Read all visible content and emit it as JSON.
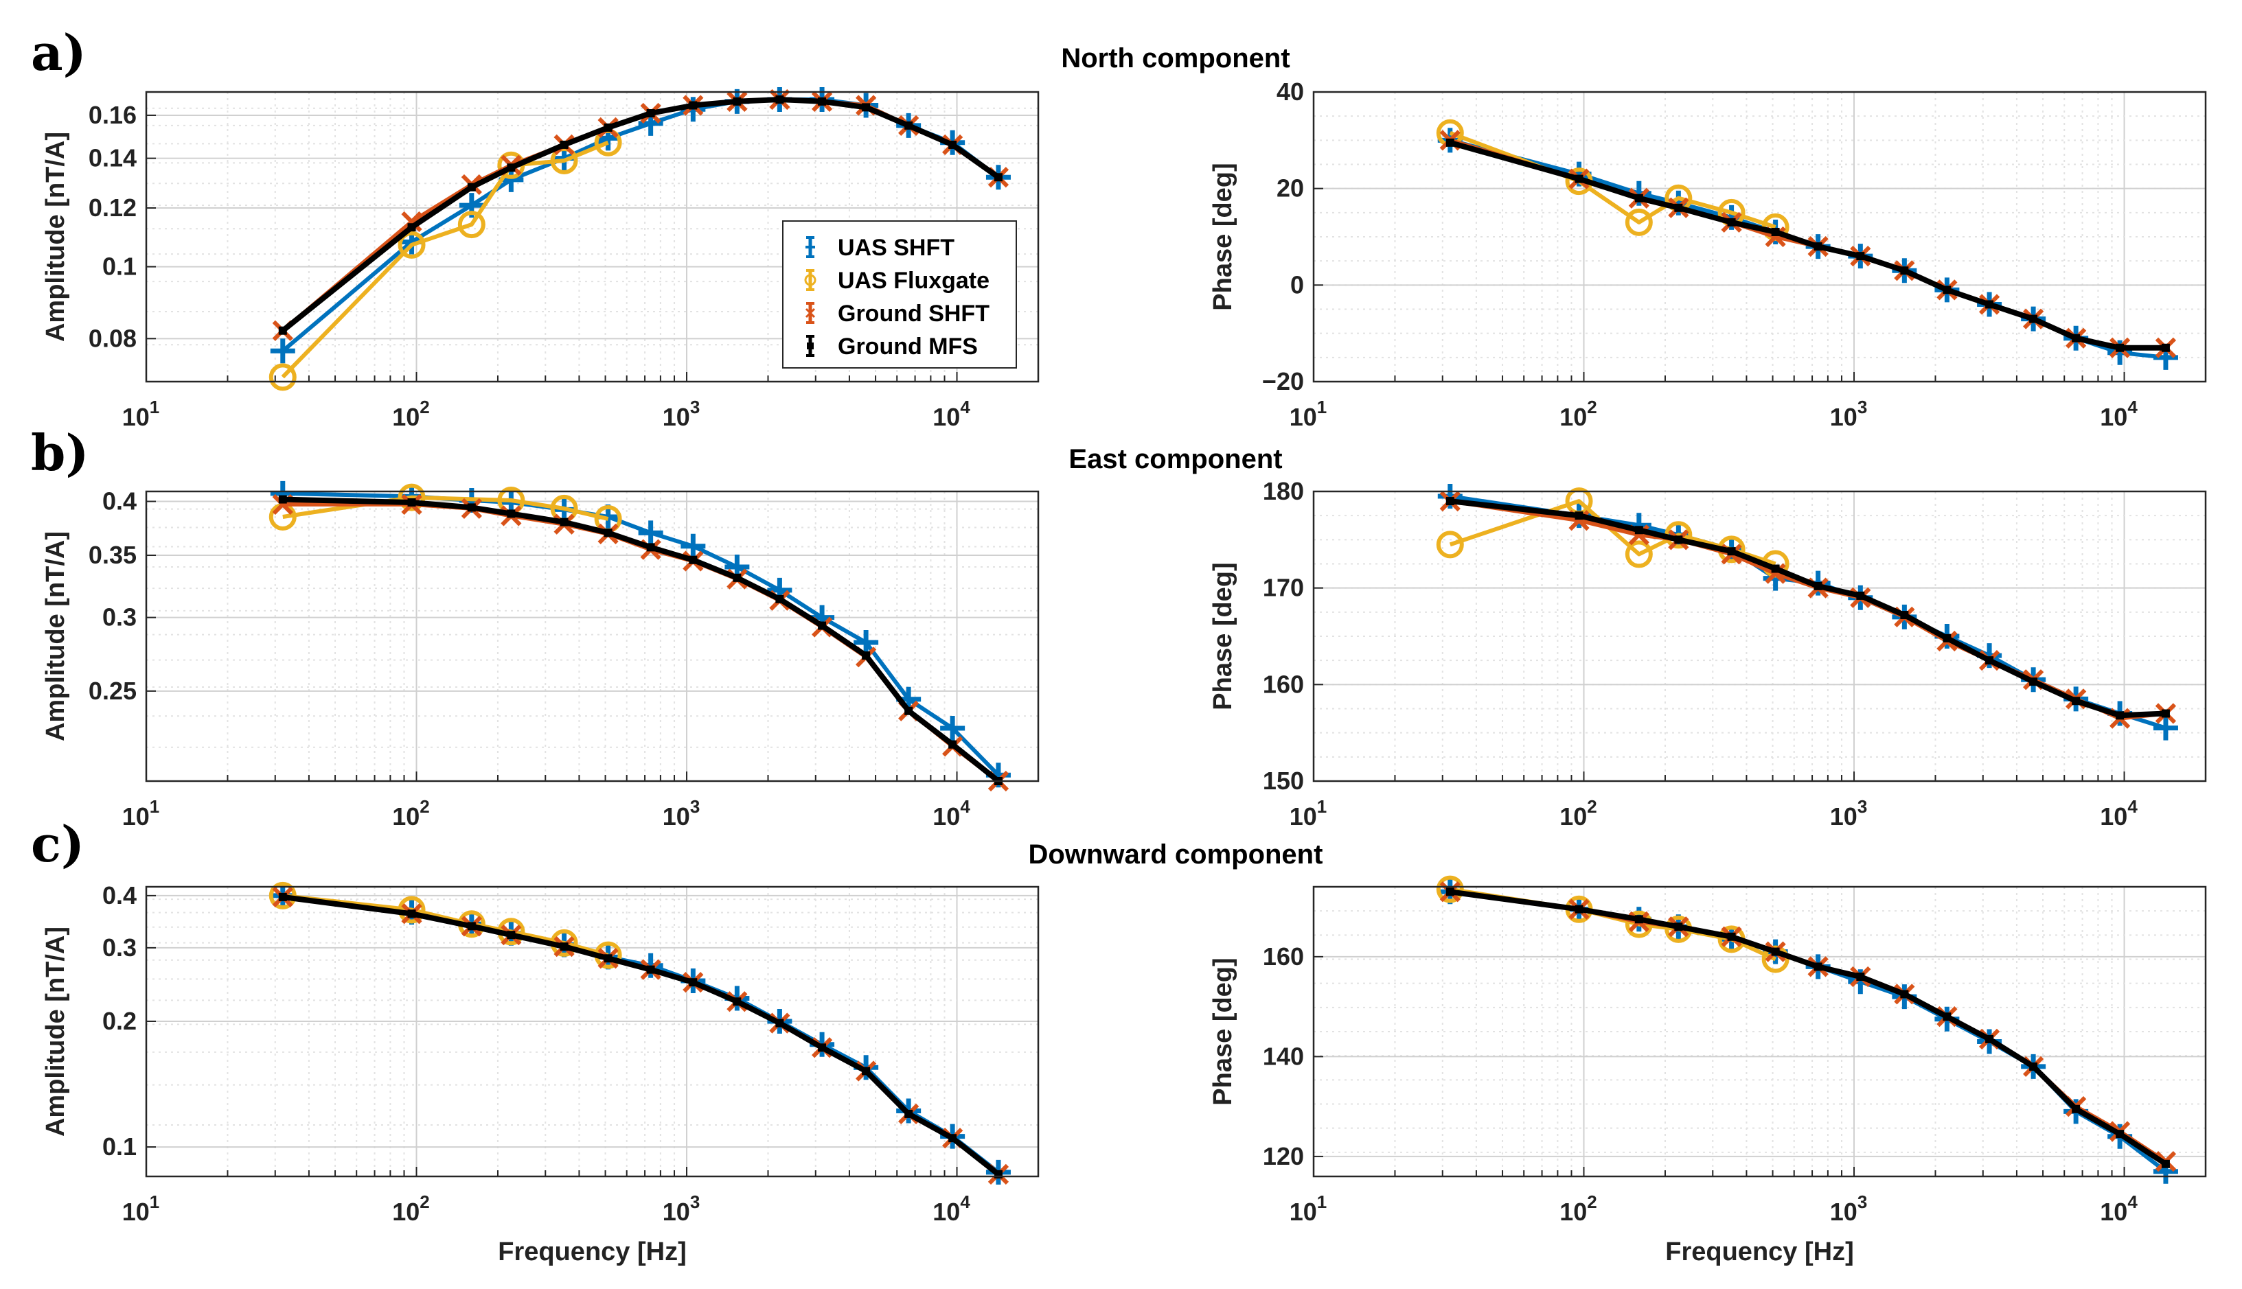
{
  "colors": {
    "uas_shft": "#0072BD",
    "uas_fluxgate": "#EDB120",
    "ground_shft": "#D95319",
    "ground_mfs": "#000000"
  },
  "frequencies": [
    32,
    96,
    160,
    224,
    352,
    512,
    736,
    1056,
    1536,
    2208,
    3168,
    4608,
    6624,
    9632,
    14240
  ],
  "chart_data": [
    {
      "id": "north-amp",
      "type": "line",
      "section": "a)",
      "title": "North component",
      "xlabel": "",
      "ylabel": "Amplitude [nT/A]",
      "xscale": "log",
      "yscale": "log",
      "xlim": [
        10,
        20000
      ],
      "ylim": [
        0.07,
        0.172
      ],
      "xticks": [
        {
          "v": 10,
          "b": "10",
          "e": "1"
        },
        {
          "v": 100,
          "b": "10",
          "e": "2"
        },
        {
          "v": 1000,
          "b": "10",
          "e": "3"
        },
        {
          "v": 10000,
          "b": "10",
          "e": "4"
        }
      ],
      "yticks": [
        {
          "v": 0.08,
          "t": "0.08"
        },
        {
          "v": 0.1,
          "t": "0.1"
        },
        {
          "v": 0.12,
          "t": "0.12"
        },
        {
          "v": 0.14,
          "t": "0.14"
        },
        {
          "v": 0.16,
          "t": "0.16"
        }
      ],
      "legend": [
        "UAS SHFT",
        "UAS Fluxgate",
        "Ground SHFT",
        "Ground MFS"
      ],
      "series": [
        {
          "name": "UAS SHFT",
          "values": [
            0.077,
            0.108,
            0.121,
            0.131,
            0.14,
            0.149,
            0.156,
            0.163,
            0.167,
            0.168,
            0.168,
            0.165,
            0.155,
            0.147,
            0.132
          ]
        },
        {
          "name": "UAS Fluxgate",
          "values": [
            0.071,
            0.107,
            0.114,
            0.137,
            0.139,
            0.147,
            null,
            null,
            null,
            null,
            null,
            null,
            null,
            null,
            null
          ]
        },
        {
          "name": "Ground SHFT",
          "values": [
            0.082,
            0.115,
            0.129,
            0.137,
            0.146,
            0.154,
            0.161,
            0.165,
            0.167,
            0.168,
            0.167,
            0.165,
            0.155,
            0.146,
            0.132
          ]
        },
        {
          "name": "Ground MFS",
          "values": [
            0.082,
            0.113,
            0.128,
            0.136,
            0.146,
            0.154,
            0.161,
            0.165,
            0.167,
            0.168,
            0.167,
            0.164,
            0.155,
            0.146,
            0.132
          ]
        }
      ]
    },
    {
      "id": "north-phase",
      "type": "line",
      "title": "",
      "xlabel": "",
      "ylabel": "Phase [deg]",
      "xscale": "log",
      "yscale": "linear",
      "xlim": [
        10,
        20000
      ],
      "ylim": [
        -20,
        40
      ],
      "xticks": [
        {
          "v": 10,
          "b": "10",
          "e": "1"
        },
        {
          "v": 100,
          "b": "10",
          "e": "2"
        },
        {
          "v": 1000,
          "b": "10",
          "e": "3"
        },
        {
          "v": 10000,
          "b": "10",
          "e": "4"
        }
      ],
      "yticks": [
        {
          "v": -20,
          "t": "−20"
        },
        {
          "v": 0,
          "t": "0"
        },
        {
          "v": 20,
          "t": "20"
        },
        {
          "v": 40,
          "t": "40"
        }
      ],
      "series": [
        {
          "name": "UAS SHFT",
          "values": [
            30,
            23,
            19,
            17,
            14,
            11,
            8,
            6,
            3,
            -1,
            -4,
            -7,
            -11,
            -14,
            -15
          ]
        },
        {
          "name": "UAS Fluxgate",
          "values": [
            31.5,
            21.5,
            13,
            18,
            15,
            12,
            null,
            null,
            null,
            null,
            null,
            null,
            null,
            null,
            null
          ]
        },
        {
          "name": "Ground SHFT",
          "values": [
            30,
            22,
            18,
            16,
            13,
            10,
            8,
            6,
            3,
            -1,
            -4,
            -7,
            -11,
            -13,
            -13
          ]
        },
        {
          "name": "Ground MFS",
          "values": [
            29.5,
            22,
            18,
            16,
            13,
            11,
            8,
            6,
            3,
            -1,
            -4,
            -7,
            -11,
            -13,
            -13
          ]
        }
      ]
    },
    {
      "id": "east-amp",
      "type": "line",
      "section": "b)",
      "title": "East component",
      "xlabel": "",
      "ylabel": "Amplitude [nT/A]",
      "xscale": "log",
      "yscale": "log",
      "xlim": [
        10,
        20000
      ],
      "ylim": [
        0.2,
        0.41
      ],
      "xticks": [
        {
          "v": 10,
          "b": "10",
          "e": "1"
        },
        {
          "v": 100,
          "b": "10",
          "e": "2"
        },
        {
          "v": 1000,
          "b": "10",
          "e": "3"
        },
        {
          "v": 10000,
          "b": "10",
          "e": "4"
        }
      ],
      "yticks": [
        {
          "v": 0.25,
          "t": "0.25"
        },
        {
          "v": 0.3,
          "t": "0.3"
        },
        {
          "v": 0.35,
          "t": "0.35"
        },
        {
          "v": 0.4,
          "t": "0.4"
        }
      ],
      "series": [
        {
          "name": "UAS SHFT",
          "values": [
            0.408,
            0.405,
            0.401,
            0.399,
            0.392,
            0.385,
            0.37,
            0.358,
            0.34,
            0.321,
            0.3,
            0.282,
            0.245,
            0.228,
            0.203
          ]
        },
        {
          "name": "UAS Fluxgate",
          "values": [
            0.385,
            0.404,
            null,
            0.401,
            0.393,
            0.383,
            null,
            null,
            null,
            null,
            null,
            null,
            null,
            null,
            null
          ]
        },
        {
          "name": "Ground SHFT",
          "values": [
            0.397,
            0.397,
            0.393,
            0.386,
            0.378,
            0.369,
            0.355,
            0.345,
            0.33,
            0.313,
            0.293,
            0.272,
            0.238,
            0.218,
            0.2
          ]
        },
        {
          "name": "Ground MFS",
          "values": [
            0.402,
            0.399,
            0.394,
            0.388,
            0.38,
            0.37,
            0.357,
            0.346,
            0.331,
            0.314,
            0.294,
            0.273,
            0.238,
            0.219,
            0.2
          ]
        }
      ]
    },
    {
      "id": "east-phase",
      "type": "line",
      "title": "",
      "xlabel": "",
      "ylabel": "Phase [deg]",
      "xscale": "log",
      "yscale": "linear",
      "xlim": [
        10,
        20000
      ],
      "ylim": [
        150,
        180
      ],
      "xticks": [
        {
          "v": 10,
          "b": "10",
          "e": "1"
        },
        {
          "v": 100,
          "b": "10",
          "e": "2"
        },
        {
          "v": 1000,
          "b": "10",
          "e": "3"
        },
        {
          "v": 10000,
          "b": "10",
          "e": "4"
        }
      ],
      "yticks": [
        {
          "v": 150,
          "t": "150"
        },
        {
          "v": 160,
          "t": "160"
        },
        {
          "v": 170,
          "t": "170"
        },
        {
          "v": 180,
          "t": "180"
        }
      ],
      "series": [
        {
          "name": "UAS SHFT",
          "values": [
            179.5,
            177.5,
            176.5,
            175.5,
            174,
            171,
            170.5,
            169,
            167,
            165,
            163,
            160.5,
            158.5,
            157,
            155.5
          ]
        },
        {
          "name": "UAS Fluxgate",
          "values": [
            174.5,
            179,
            173.5,
            175.5,
            174,
            172.5,
            null,
            null,
            null,
            null,
            null,
            null,
            null,
            null,
            null
          ]
        },
        {
          "name": "Ground SHFT",
          "values": [
            179,
            177,
            175.5,
            175,
            173.5,
            171.5,
            170,
            169,
            167,
            164.5,
            162.5,
            160.5,
            158.5,
            156.5,
            157
          ]
        },
        {
          "name": "Ground MFS",
          "values": [
            179,
            177.5,
            176,
            175,
            173.8,
            172,
            170.2,
            169.2,
            167.2,
            164.8,
            162.5,
            160.3,
            158.3,
            156.8,
            157
          ]
        }
      ]
    },
    {
      "id": "down-amp",
      "type": "line",
      "section": "c)",
      "title": "Downward component",
      "xlabel": "Frequency [Hz]",
      "ylabel": "Amplitude [nT/A]",
      "xscale": "log",
      "yscale": "log",
      "xlim": [
        10,
        20000
      ],
      "ylim": [
        0.085,
        0.42
      ],
      "xticks": [
        {
          "v": 10,
          "b": "10",
          "e": "1"
        },
        {
          "v": 100,
          "b": "10",
          "e": "2"
        },
        {
          "v": 1000,
          "b": "10",
          "e": "3"
        },
        {
          "v": 10000,
          "b": "10",
          "e": "4"
        }
      ],
      "yticks": [
        {
          "v": 0.1,
          "t": "0.1"
        },
        {
          "v": 0.2,
          "t": "0.2"
        },
        {
          "v": 0.3,
          "t": "0.3"
        },
        {
          "v": 0.4,
          "t": "0.4"
        }
      ],
      "series": [
        {
          "name": "UAS SHFT",
          "values": [
            0.4,
            0.365,
            0.342,
            0.325,
            0.305,
            0.285,
            0.272,
            0.25,
            0.227,
            0.2,
            0.176,
            0.155,
            0.122,
            0.106,
            0.087
          ]
        },
        {
          "name": "UAS Fluxgate",
          "values": [
            0.4,
            0.37,
            0.342,
            0.328,
            0.308,
            0.288,
            null,
            null,
            null,
            null,
            null,
            null,
            null,
            null,
            null
          ]
        },
        {
          "name": "Ground SHFT",
          "values": [
            0.397,
            0.362,
            0.338,
            0.322,
            0.302,
            0.283,
            0.266,
            0.248,
            0.223,
            0.198,
            0.173,
            0.152,
            0.12,
            0.105,
            0.086
          ]
        },
        {
          "name": "Ground MFS",
          "values": [
            0.397,
            0.362,
            0.338,
            0.322,
            0.302,
            0.283,
            0.266,
            0.248,
            0.223,
            0.198,
            0.173,
            0.152,
            0.12,
            0.105,
            0.086
          ]
        }
      ]
    },
    {
      "id": "down-phase",
      "type": "line",
      "title": "",
      "xlabel": "Frequency [Hz]",
      "ylabel": "Phase [deg]",
      "xscale": "log",
      "yscale": "linear",
      "xlim": [
        10,
        20000
      ],
      "ylim": [
        116,
        174
      ],
      "xticks": [
        {
          "v": 10,
          "b": "10",
          "e": "1"
        },
        {
          "v": 100,
          "b": "10",
          "e": "2"
        },
        {
          "v": 1000,
          "b": "10",
          "e": "3"
        },
        {
          "v": 10000,
          "b": "10",
          "e": "4"
        }
      ],
      "yticks": [
        {
          "v": 120,
          "t": "120"
        },
        {
          "v": 140,
          "t": "140"
        },
        {
          "v": 160,
          "t": "160"
        }
      ],
      "series": [
        {
          "name": "UAS SHFT",
          "values": [
            173,
            169.5,
            167.5,
            166,
            163.5,
            161,
            158,
            155,
            152,
            147.5,
            143,
            138,
            129,
            124,
            117
          ]
        },
        {
          "name": "UAS Fluxgate",
          "values": [
            173.5,
            169.5,
            166.5,
            165.5,
            163.5,
            159.5,
            null,
            null,
            null,
            null,
            null,
            null,
            null,
            null,
            null
          ]
        },
        {
          "name": "Ground SHFT",
          "values": [
            173,
            169.5,
            167,
            166,
            164,
            161,
            158,
            156,
            152.5,
            148,
            143.5,
            138,
            130,
            125,
            119
          ]
        },
        {
          "name": "Ground MFS",
          "values": [
            173,
            169.5,
            167.5,
            166,
            164,
            161,
            158,
            156,
            152.5,
            148,
            143.5,
            138,
            129.5,
            124.5,
            118.5
          ]
        }
      ]
    }
  ]
}
